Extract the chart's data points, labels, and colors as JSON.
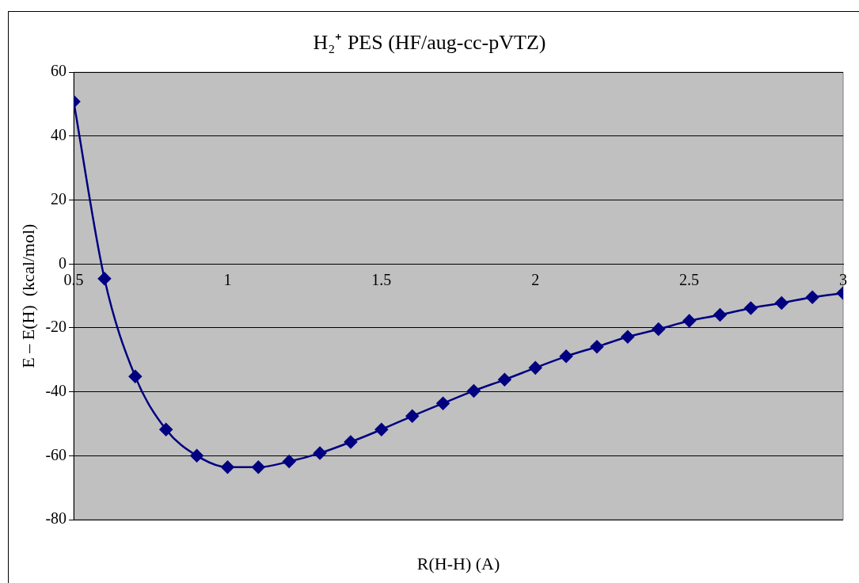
{
  "chart_data": {
    "type": "line",
    "title": "H₂⁺ PES (HF/aug-cc-pVTZ)",
    "xlabel": "R(H-H) (A)",
    "ylabel": "E – E(H)  (kcal/mol)",
    "x": [
      0.5,
      0.6,
      0.7,
      0.8,
      0.9,
      1.0,
      1.1,
      1.2,
      1.3,
      1.4,
      1.5,
      1.6,
      1.7,
      1.8,
      1.9,
      2.0,
      2.1,
      2.2,
      2.3,
      2.4,
      2.5,
      2.6,
      2.7,
      2.8,
      2.9,
      3.0
    ],
    "series": [
      {
        "color": "#000080",
        "values": [
          50.8,
          -4.6,
          -35.2,
          -51.8,
          -60.0,
          -63.6,
          -63.6,
          -61.8,
          -59.2,
          -55.7,
          -51.8,
          -47.6,
          -43.6,
          -39.7,
          -36.2,
          -32.5,
          -28.9,
          -25.9,
          -22.8,
          -20.4,
          -17.8,
          -15.9,
          -13.8,
          -12.2,
          -10.4,
          -9.1
        ]
      }
    ],
    "xlim": [
      0.5,
      3
    ],
    "xticks": [
      0.5,
      1,
      1.5,
      2,
      2.5,
      3
    ],
    "ylim": [
      -80,
      60
    ],
    "yticks": [
      -80,
      -60,
      -40,
      -20,
      0,
      20,
      40,
      60
    ],
    "grid": "y",
    "legend": false,
    "marker": "diamond",
    "line_style": "solid"
  }
}
